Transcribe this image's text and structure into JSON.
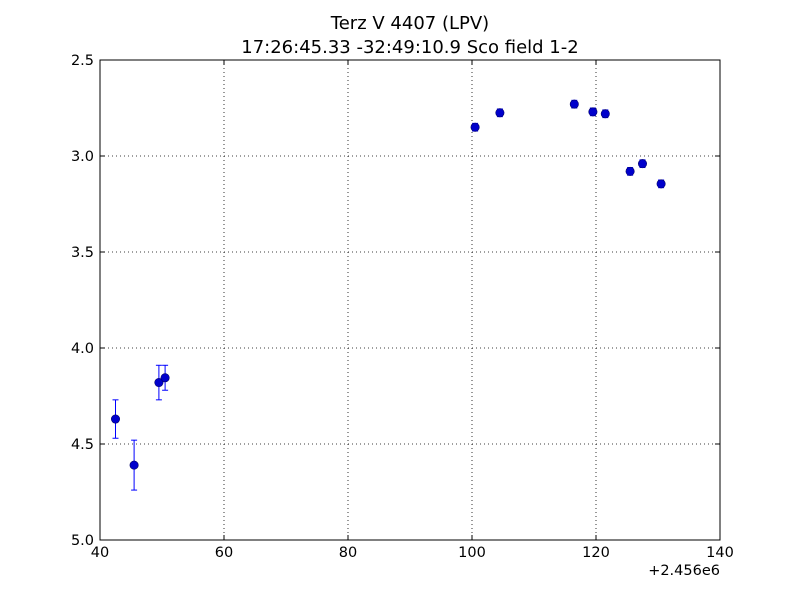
{
  "chart_data": {
    "type": "scatter",
    "title": "Terz V 4407  (LPV)",
    "subtitle": "17:26:45.33 -32:49:10.9 Sco field 1-2",
    "xlabel": "",
    "ylabel": "",
    "x_offset_label": "+2.456e6",
    "xlim": [
      40,
      140
    ],
    "ylim": [
      2.5,
      5.0
    ],
    "y_inverted": true,
    "grid": true,
    "x_ticks": [
      40,
      60,
      80,
      100,
      120,
      140
    ],
    "y_ticks": [
      2.5,
      3.0,
      3.5,
      4.0,
      4.5,
      5.0
    ],
    "x_tick_labels": [
      "40",
      "60",
      "80",
      "100",
      "120",
      "140"
    ],
    "y_tick_labels": [
      "2.5",
      "3.0",
      "3.5",
      "4.0",
      "4.5",
      "5.0"
    ],
    "marker_color": "#0000cc",
    "errorbar_color": "#0000ff",
    "points": [
      {
        "x": 42.5,
        "y": 4.37,
        "err": 0.1
      },
      {
        "x": 45.5,
        "y": 4.61,
        "err": 0.13
      },
      {
        "x": 49.5,
        "y": 4.18,
        "err": 0.09
      },
      {
        "x": 50.5,
        "y": 4.155,
        "err": 0.065
      },
      {
        "x": 100.5,
        "y": 2.85,
        "err": 0.02
      },
      {
        "x": 104.5,
        "y": 2.775,
        "err": 0.02
      },
      {
        "x": 116.5,
        "y": 2.73,
        "err": 0.02
      },
      {
        "x": 119.5,
        "y": 2.77,
        "err": 0.02
      },
      {
        "x": 121.5,
        "y": 2.78,
        "err": 0.02
      },
      {
        "x": 125.5,
        "y": 3.08,
        "err": 0.02
      },
      {
        "x": 127.5,
        "y": 3.04,
        "err": 0.02
      },
      {
        "x": 130.5,
        "y": 3.145,
        "err": 0.02
      }
    ]
  }
}
